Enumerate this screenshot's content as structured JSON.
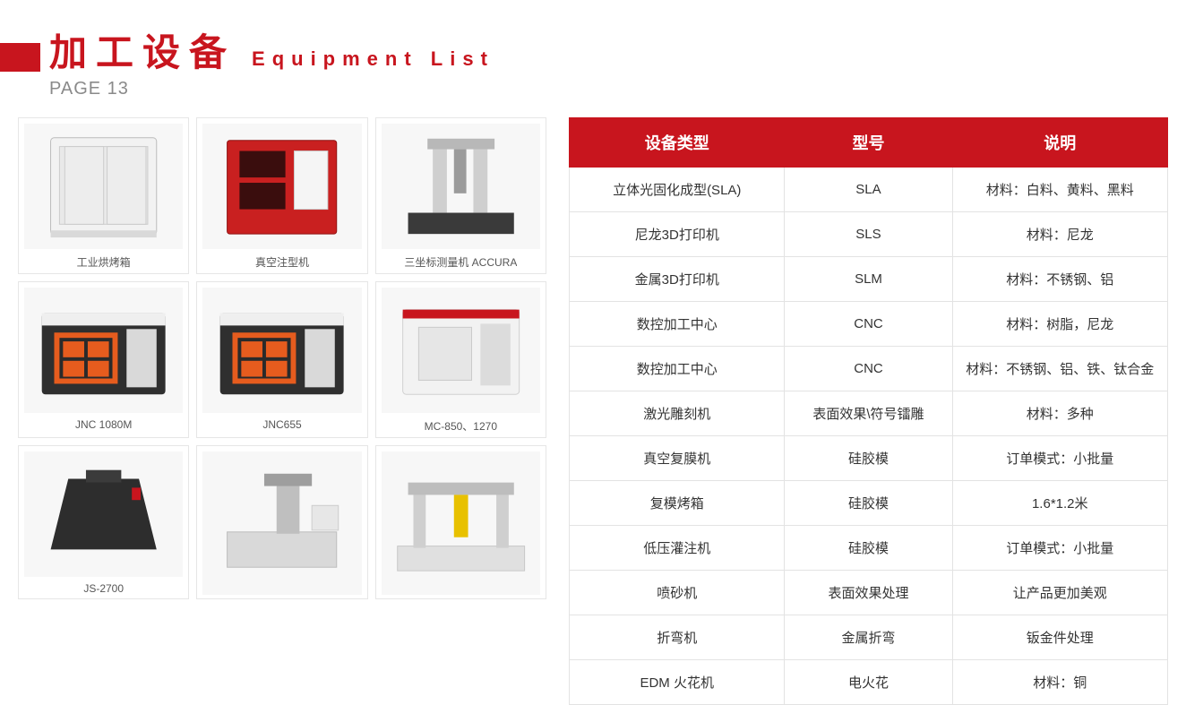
{
  "header": {
    "title_cn": "加工设备",
    "title_en": "Equipment List",
    "page_label": "PAGE 13",
    "accent_color": "#c8151e",
    "page_label_color": "#8a8a8a"
  },
  "gallery": {
    "items": [
      {
        "caption": "工业烘烤箱",
        "kind": "oven"
      },
      {
        "caption": "真空注型机",
        "kind": "oven2"
      },
      {
        "caption": "三坐标测量机 ACCURA",
        "kind": "cmm"
      },
      {
        "caption": "JNC 1080M",
        "kind": "cnc"
      },
      {
        "caption": "JNC655",
        "kind": "cnc"
      },
      {
        "caption": "MC-850、1270",
        "kind": "mill"
      },
      {
        "caption": "JS-2700",
        "kind": "printer"
      },
      {
        "caption": "",
        "kind": "edm"
      },
      {
        "caption": "",
        "kind": "gantry"
      }
    ]
  },
  "table": {
    "headers": [
      "设备类型",
      "型号",
      "说明"
    ],
    "rows": [
      [
        "立体光固化成型(SLA)",
        "SLA",
        "材料：白料、黄料、黑料"
      ],
      [
        "尼龙3D打印机",
        "SLS",
        "材料：尼龙"
      ],
      [
        "金属3D打印机",
        "SLM",
        "材料：不锈钢、铝"
      ],
      [
        "数控加工中心",
        "CNC",
        "材料：树脂，尼龙"
      ],
      [
        "数控加工中心",
        "CNC",
        "材料：不锈钢、铝、铁、钛合金"
      ],
      [
        "激光雕刻机",
        "表面效果\\符号镭雕",
        "材料：多种"
      ],
      [
        "真空复膜机",
        "硅胶模",
        "订单模式：小批量"
      ],
      [
        "复模烤箱",
        "硅胶模",
        "1.6*1.2米"
      ],
      [
        "低压灌注机",
        "硅胶模",
        "订单模式：小批量"
      ],
      [
        "喷砂机",
        "表面效果处理",
        "让产品更加美观"
      ],
      [
        "折弯机",
        "金属折弯",
        "钣金件处理"
      ],
      [
        "EDM 火花机",
        "电火花",
        "材料：铜"
      ]
    ],
    "header_bg": "#c8151e",
    "header_fg": "#ffffff",
    "border_color": "#e3e3e3",
    "cell_fg": "#333333",
    "cell_bg": "#ffffff",
    "header_fontsize": 18,
    "cell_fontsize": 15
  }
}
